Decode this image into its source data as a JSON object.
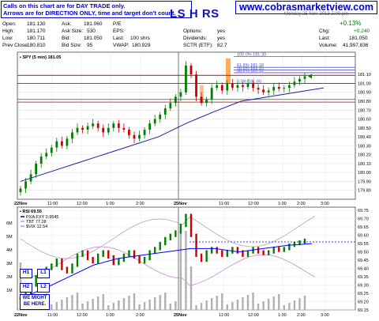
{
  "header": {
    "note_line1": "Calls on this chart are for DAY TRADE only.",
    "note_line2": "Arrows are for DIRECTION ONLY, time and target don't count.",
    "ticker": "LS H RS",
    "website": "www.cobrasmarketview.com",
    "datestamp": "Monday 25-Nov-2013 2:09 pm"
  },
  "quote": {
    "open_label": "Open:",
    "open": "181.130",
    "high_label": "High:",
    "high": "181.170",
    "low_label": "Low:",
    "low": "180.711",
    "prevclose_label": "Prev Close:",
    "prevclose": "180.810",
    "ask_label": "Ask:",
    "ask": "181.060",
    "asksize_label": "Ask Size:",
    "asksize": "530",
    "bid_label": "Bid:",
    "bid": "181.050",
    "bidsize_label": "Bid Size:",
    "bidsize": "95",
    "pe_label": "P/E",
    "pe": "",
    "eps_label": "EPS:",
    "eps": "",
    "last_label": "Last:",
    "last": "100 shrs",
    "vwap_label": "VWAP:",
    "vwap": "180.929",
    "options_label": "Options:",
    "options": "yes",
    "dividends_label": "Dividends:",
    "dividends": "yes",
    "sctr_label": "SCTR (ETF):",
    "sctr": "82.7",
    "chg_pct": "+0.13%",
    "chg_label": "Chg:",
    "chg": "+0.240",
    "last2_label": "Last:",
    "last2": "181.050",
    "volume_label": "Volume:",
    "volume": "41,997,836"
  },
  "boxes": {
    "h1": "H1",
    "l1": "L1",
    "h2": "H2",
    "l2": "L2",
    "might": "WE MIGHT BE HERE."
  },
  "colors": {
    "up": "#008000",
    "down": "#cc0000",
    "ma": "#2020a0",
    "fib": "#5555cc",
    "orange": "#ff9933",
    "rsi_line": "#0000ff",
    "vix": "#cc88dd",
    "tbt": "#aaaaaa"
  },
  "chart_data": [
    {
      "type": "candlestick",
      "title": "SPY (5 min) 181.05",
      "ylim": [
        179.7,
        181.35
      ],
      "y_ticks": [
        "181.10",
        "181.00",
        "180.90",
        "180.80",
        "180.70",
        "180.60",
        "180.50",
        "180.40",
        "180.30",
        "180.20",
        "180.10",
        "180.00",
        "179.90",
        "179.80"
      ],
      "x_ticks": [
        "22Nov",
        "11:00",
        "12:00",
        "1:00",
        "2:00",
        "25Nov",
        "11:00",
        "12:00",
        "1:00",
        "2:00",
        "3:00"
      ],
      "close_series": [
        179.82,
        179.9,
        179.98,
        180.1,
        180.18,
        180.22,
        180.28,
        180.35,
        180.3,
        180.38,
        180.45,
        180.5,
        180.48,
        180.52,
        180.55,
        180.5,
        180.45,
        180.5,
        180.55,
        180.5,
        180.48,
        180.42,
        180.38,
        180.42,
        180.48,
        180.55,
        180.6,
        180.65,
        180.72,
        180.78,
        180.85,
        180.9,
        181.2,
        181.1,
        180.85,
        180.78,
        180.82,
        180.95,
        180.98,
        180.92,
        181.0,
        180.95,
        180.98,
        180.96,
        181.0,
        180.95,
        180.93,
        180.9,
        180.92,
        180.96,
        180.94,
        180.95,
        180.98,
        181.02,
        181.05,
        181.08
      ],
      "moving_average": [
        179.9,
        180.0,
        180.1,
        180.2,
        180.3,
        180.4,
        180.55,
        180.68,
        180.8,
        180.85,
        180.9,
        180.95
      ],
      "horizontal_lines": [
        {
          "label": "100.0% 181.30",
          "value": 181.3,
          "color": "#5555cc"
        },
        {
          "label": "61.8% 181.18",
          "value": 181.18,
          "color": "#5555cc"
        },
        {
          "label": "50.0% 181.15",
          "value": 181.15,
          "color": "#5555cc"
        },
        {
          "label": "38.2% 181.12",
          "value": 181.12,
          "color": "#5555cc"
        },
        {
          "label": "0.0% 181.00",
          "value": 181.0,
          "color": "#5555cc"
        },
        {
          "label": "",
          "value": 181.09,
          "color": "#cc0000"
        },
        {
          "label": "",
          "value": 180.79,
          "color": "#cc0000"
        },
        {
          "label": "",
          "value": 181.0,
          "color": "#008000"
        },
        {
          "label": "",
          "value": 180.82,
          "color": "#008000"
        }
      ]
    },
    {
      "type": "line",
      "title": "RSI 69.55",
      "legend": [
        "PXA:FXY 0.9545",
        "TBT 77.28",
        "$VIX 12.54"
      ],
      "ylim": [
        69.15,
        69.77
      ],
      "y_ticks": [
        "69.75",
        "69.70",
        "69.65",
        "69.60",
        "69.55",
        "69.50",
        "69.45",
        "69.40",
        "69.35",
        "69.30",
        "69.25",
        "69.20",
        "69.15"
      ],
      "volume_ticks": [
        "6M",
        "5M",
        "4M",
        "3M",
        "2M",
        "1M"
      ],
      "x_ticks": [
        "22Nov",
        "11:00",
        "12:00",
        "1:00",
        "2:00",
        "25Nov",
        "11:00",
        "12:00",
        "1:00",
        "2:00",
        "3:00"
      ],
      "dashed_level": 69.56
    }
  ]
}
